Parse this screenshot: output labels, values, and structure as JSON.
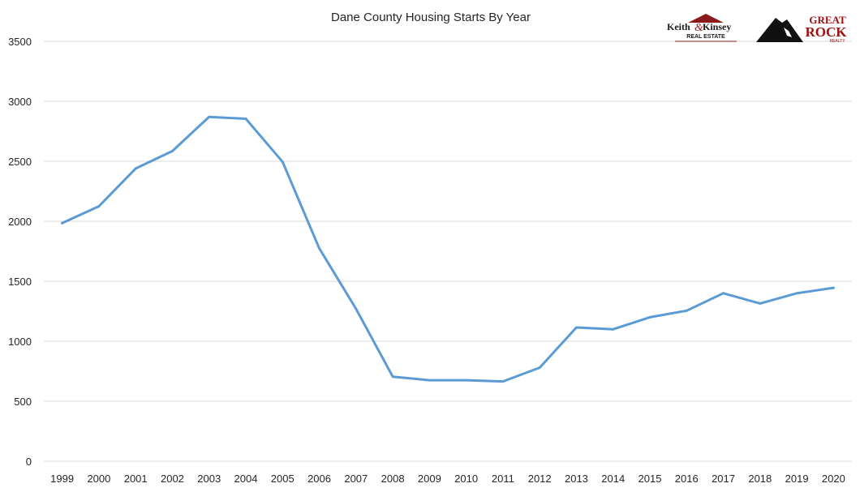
{
  "chart_data": {
    "type": "line",
    "title": "Dane County Housing Starts By Year",
    "xlabel": "",
    "ylabel": "",
    "ylim": [
      0,
      3500
    ],
    "yticks": [
      0,
      500,
      1000,
      1500,
      2000,
      2500,
      3000,
      3500
    ],
    "grid": true,
    "categories": [
      "1999",
      "2000",
      "2001",
      "2002",
      "2003",
      "2004",
      "2005",
      "2006",
      "2007",
      "2008",
      "2009",
      "2010",
      "2011",
      "2012",
      "2013",
      "2014",
      "2015",
      "2016",
      "2017",
      "2018",
      "2019",
      "2020"
    ],
    "series": [
      {
        "color": "#5b9bd5",
        "values": [
          1985,
          2125,
          2440,
          2585,
          2870,
          2855,
          2495,
          1775,
          1270,
          705,
          675,
          675,
          665,
          780,
          1115,
          1100,
          1200,
          1255,
          1400,
          1315,
          1400,
          1445
        ]
      }
    ]
  },
  "logos": {
    "left": {
      "name": "Keith & Kinsey Real Estate",
      "line1": "Keith",
      "amp": "&",
      "line1b": "Kinsey",
      "line2": "REAL ESTATE"
    },
    "right": {
      "name": "Great Rock Realty",
      "line1": "GREAT",
      "line2": "ROCK",
      "line3": "REALTY"
    }
  }
}
